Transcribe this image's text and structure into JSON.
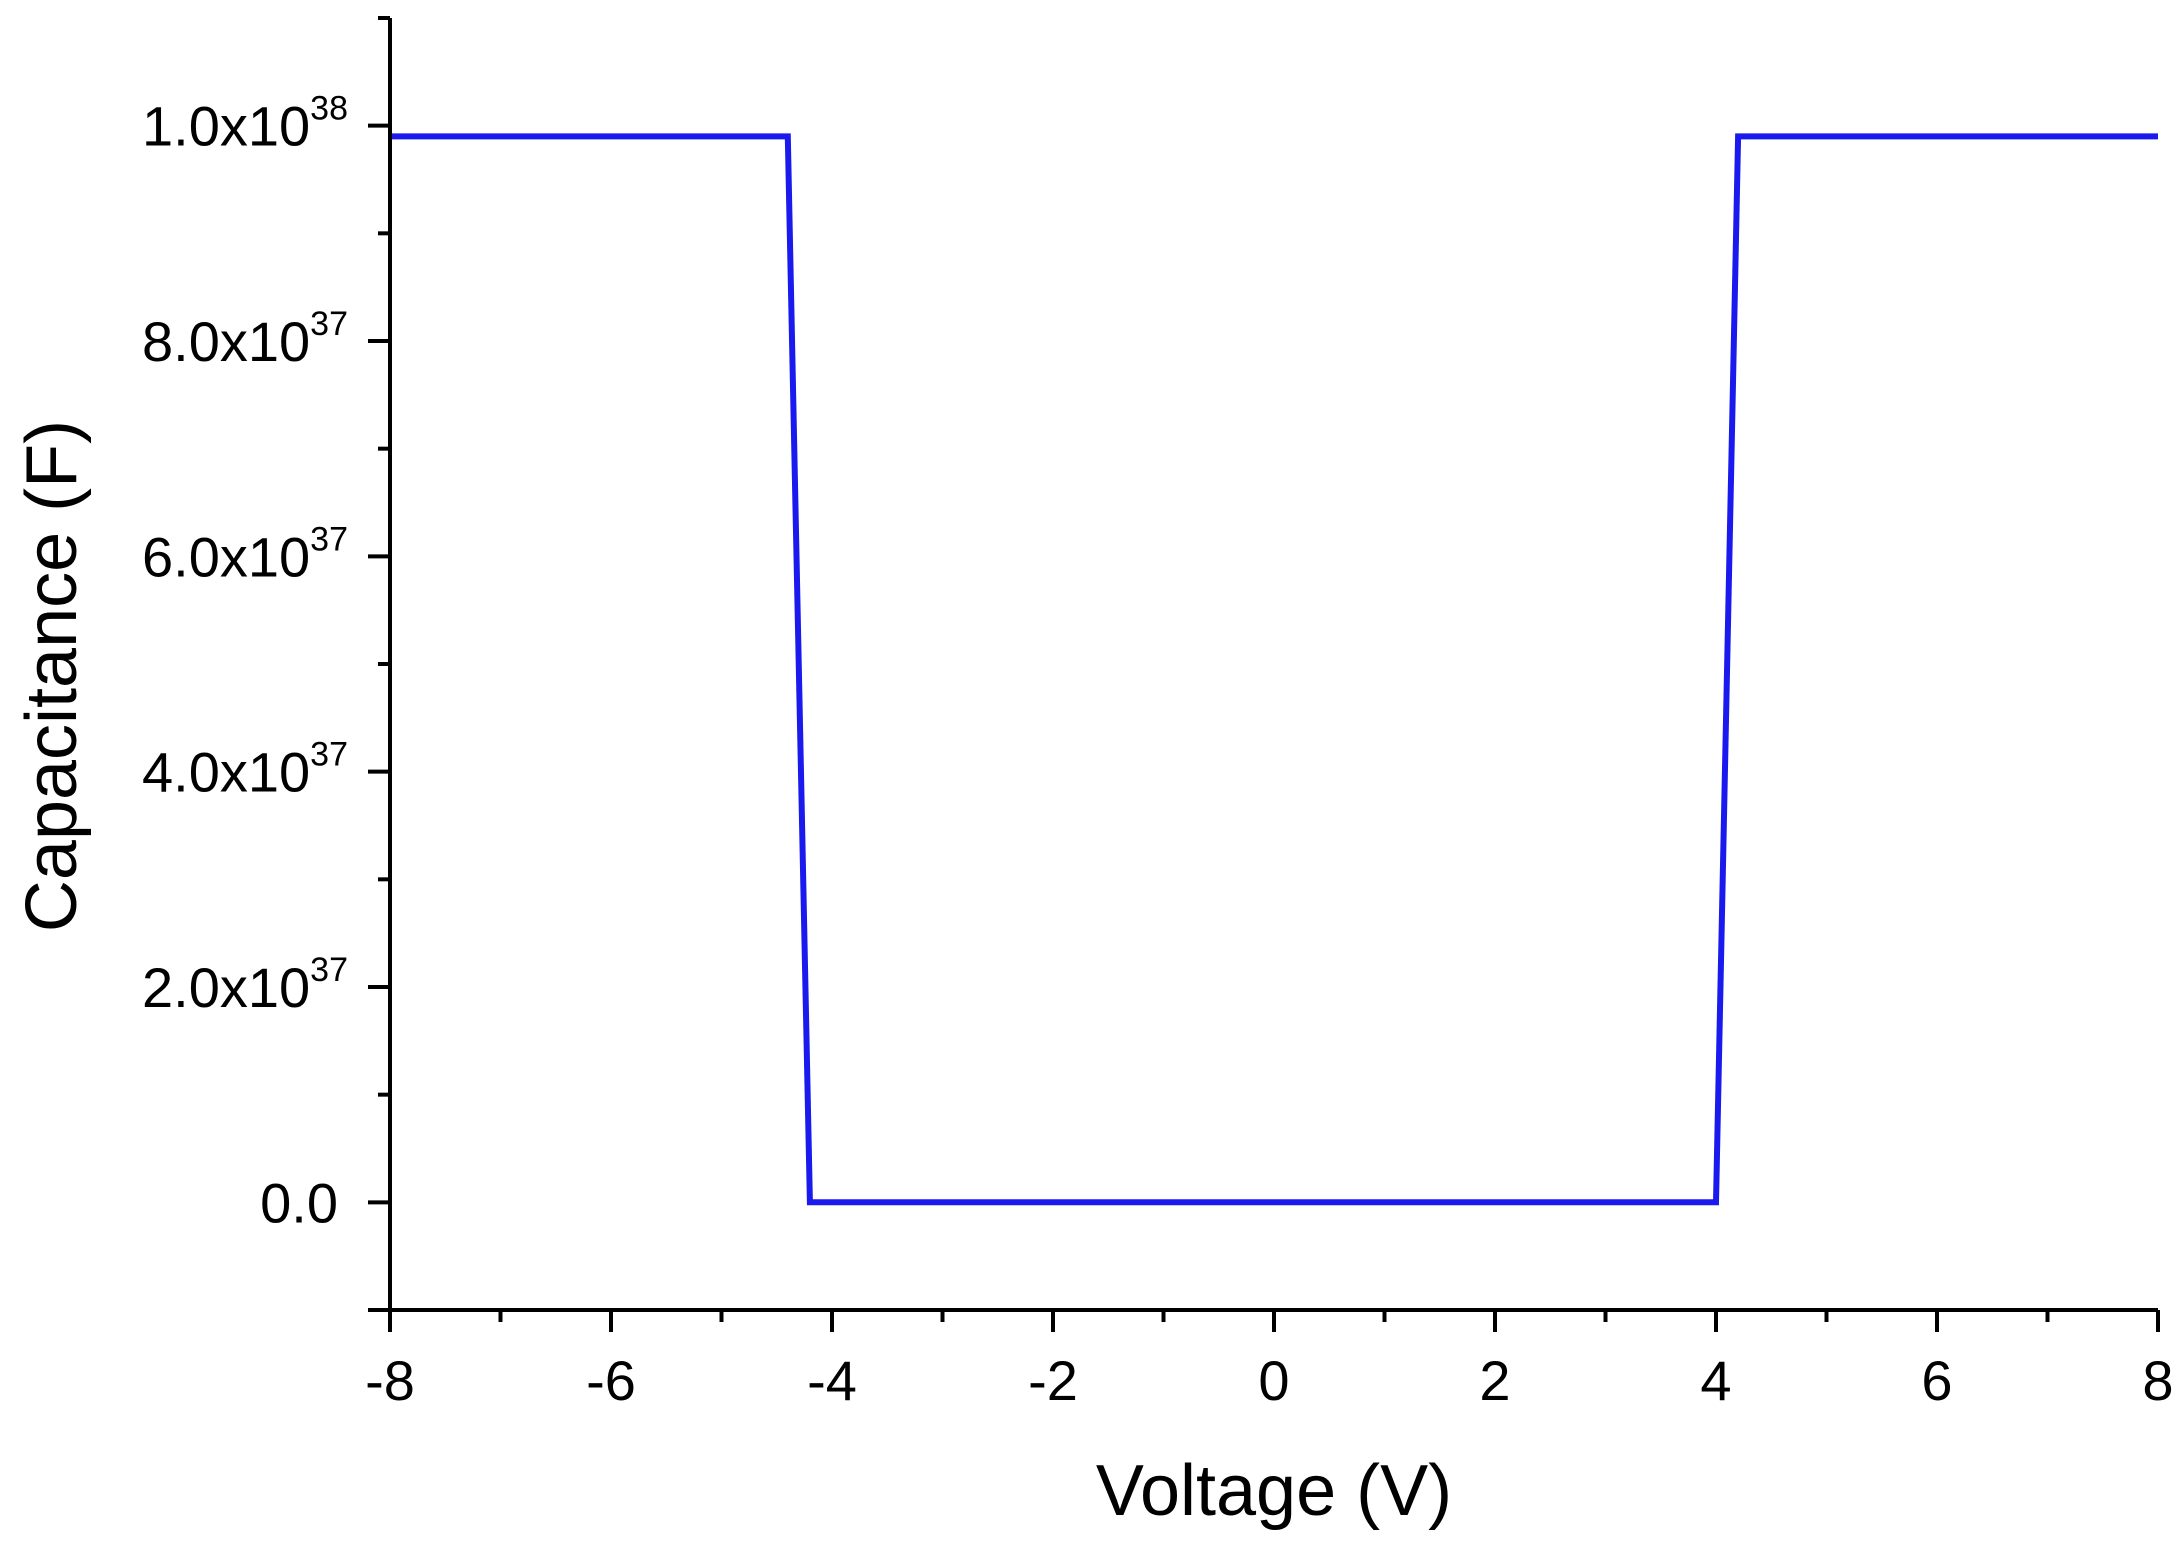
{
  "chart_data": {
    "type": "line",
    "xlabel": "Voltage (V)",
    "ylabel": "Capacitance (F)",
    "xlim": [
      -8,
      8
    ],
    "ylim": [
      -1e+37,
      1.1e+38
    ],
    "x_ticks": [
      -8,
      -6,
      -4,
      -2,
      0,
      2,
      4,
      6,
      8
    ],
    "x_tick_labels": [
      "-8",
      "-6",
      "-4",
      "-2",
      "0",
      "2",
      "4",
      "6",
      "8"
    ],
    "y_ticks": [
      {
        "value": 0,
        "mantissa": "0.0",
        "exponent": ""
      },
      {
        "value": 2e+37,
        "mantissa": "2.0x10",
        "exponent": "37"
      },
      {
        "value": 4e+37,
        "mantissa": "4.0x10",
        "exponent": "37"
      },
      {
        "value": 6e+37,
        "mantissa": "6.0x10",
        "exponent": "37"
      },
      {
        "value": 8e+37,
        "mantissa": "8.0x10",
        "exponent": "37"
      },
      {
        "value": 1e+38,
        "mantissa": "1.0x10",
        "exponent": "38"
      }
    ],
    "grid": false,
    "series": [
      {
        "color": "#1a1aee",
        "x": [
          -8,
          -4.4,
          -4.2,
          4.0,
          4.2,
          8
        ],
        "y": [
          9.9e+37,
          9.9e+37,
          0,
          0,
          9.9e+37,
          9.9e+37
        ]
      }
    ]
  }
}
